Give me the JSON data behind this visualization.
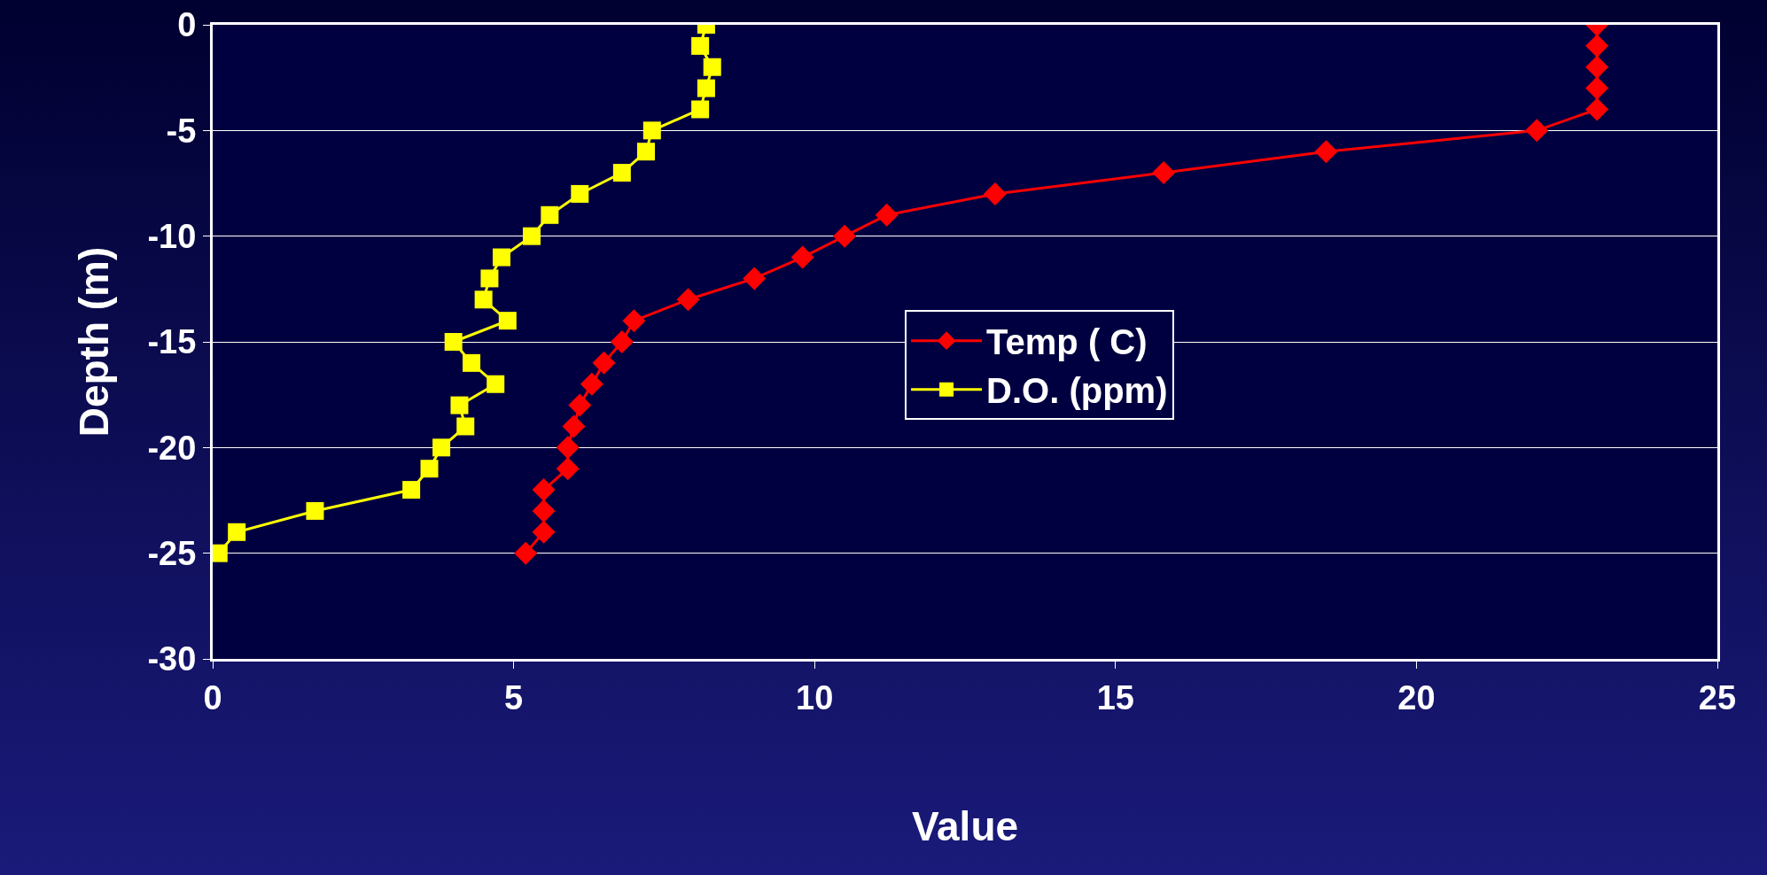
{
  "chart_data": {
    "type": "line",
    "xlabel": "Value",
    "ylabel": "Depth (m)",
    "xlim": [
      0,
      25
    ],
    "xticks": [
      0,
      5,
      10,
      15,
      20,
      25
    ],
    "ylim": [
      -30,
      0
    ],
    "yticks": [
      -30,
      -25,
      -20,
      -15,
      -10,
      -5,
      0
    ],
    "grid": "y",
    "legend": "right",
    "line_style": "solid",
    "series": [
      {
        "name": "Temp ( C)",
        "color": "#ff0000",
        "marker": "diamond",
        "x": [
          23,
          23,
          23,
          23,
          23,
          22,
          18.5,
          15.8,
          13,
          11.2,
          10.5,
          9.8,
          9,
          7.9,
          7,
          6.8,
          6.5,
          6.3,
          6.1,
          6,
          5.9,
          5.9,
          5.5,
          5.5,
          5.5,
          5.2
        ],
        "values": [
          0,
          -1,
          -2,
          -3,
          -4,
          -5,
          -6,
          -7,
          -8,
          -9,
          -10,
          -11,
          -12,
          -13,
          -14,
          -15,
          -16,
          -17,
          -18,
          -19,
          -20,
          -21,
          -22,
          -23,
          -24,
          -25
        ]
      },
      {
        "name": "D.O. (ppm)",
        "color": "#ffff00",
        "marker": "square",
        "x": [
          8.2,
          8.1,
          8.3,
          8.2,
          8.1,
          7.3,
          7.2,
          6.8,
          6.1,
          5.6,
          5.3,
          4.8,
          4.6,
          4.5,
          4.9,
          4,
          4.3,
          4.7,
          4.1,
          4.2,
          3.8,
          3.6,
          3.3,
          1.7,
          0.4,
          0.1
        ],
        "values": [
          0,
          -1,
          -2,
          -3,
          -4,
          -5,
          -6,
          -7,
          -8,
          -9,
          -10,
          -11,
          -12,
          -13,
          -14,
          -15,
          -16,
          -17,
          -18,
          -19,
          -20,
          -21,
          -22,
          -23,
          -24,
          -25
        ]
      }
    ]
  }
}
